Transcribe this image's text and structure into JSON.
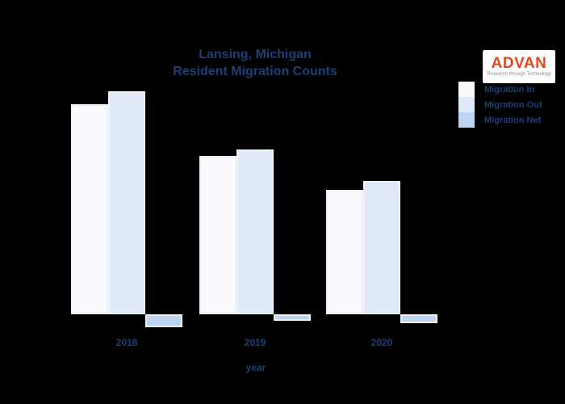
{
  "page": {
    "background_color": "#000000",
    "text_color": "#1d3f77",
    "title_line1": "Lansing, Michigan",
    "title_line2": "Resident Migration Counts"
  },
  "logo": {
    "brand": "ADVAN",
    "brand_color": "#E04A20",
    "tagline": "Research through Technology",
    "background_color": "#ffffff"
  },
  "legend": {
    "items": [
      {
        "label": "Migration In",
        "color": "#f8fafd"
      },
      {
        "label": "Migration Out",
        "color": "#e0e9f8"
      },
      {
        "label": "Migration Net",
        "color": "#bed4f0"
      }
    ]
  },
  "chart_data": {
    "type": "bar",
    "title": "Lansing, Michigan Resident Migration Counts",
    "categories": [
      "2018",
      "2019",
      "2020"
    ],
    "series": [
      {
        "name": "Migration In",
        "color": "#f8fafd",
        "values": [
          26000,
          19600,
          15400
        ]
      },
      {
        "name": "Migration Out",
        "color": "#e0e9f8",
        "values": [
          27600,
          20400,
          16500
        ]
      },
      {
        "name": "Migration Net",
        "color": "#bed4f0",
        "values": [
          -1600,
          -800,
          -1100
        ]
      }
    ],
    "xlabel": "year",
    "ylabel": "",
    "ylim": [
      -2000,
      28000
    ],
    "grid": false,
    "y_axis_visible": false,
    "legend_position": "upper right",
    "bar_edge_color": "#eef1f5"
  }
}
